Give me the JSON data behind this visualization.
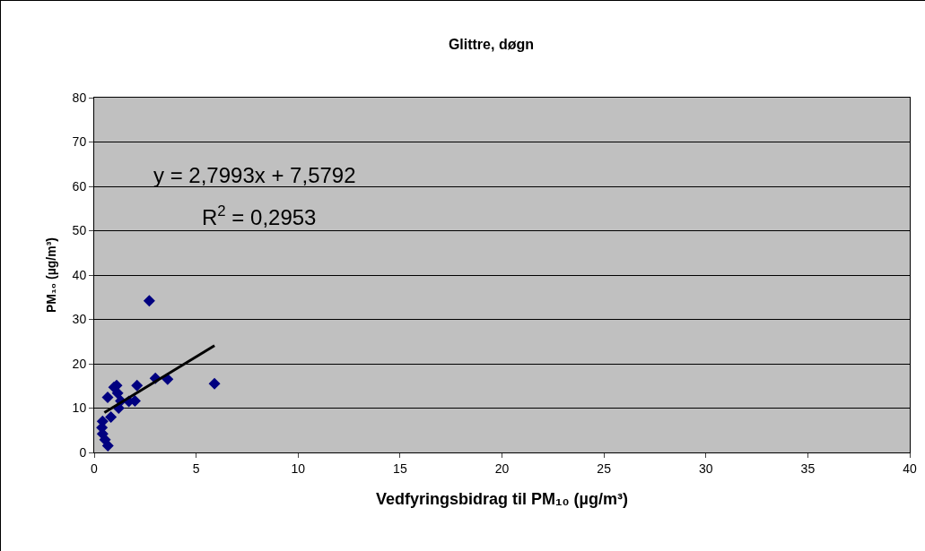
{
  "chart_data": {
    "type": "scatter",
    "title": "Glittre, døgn",
    "xlabel": "Vedfyringsbidrag til PM₁₀ (µg/m³)",
    "ylabel": "PM₁₀ (µg/m³)",
    "xlim": [
      0,
      40
    ],
    "xticks": [
      0,
      5,
      10,
      15,
      20,
      25,
      30,
      35,
      40
    ],
    "ylim": [
      0,
      80
    ],
    "yticks": [
      0,
      10,
      20,
      30,
      40,
      50,
      60,
      70,
      80
    ],
    "grid": "y",
    "marker": "diamond",
    "series": [
      {
        "color": "#000080",
        "x": [
          2.7,
          5.9,
          3.6,
          3.0,
          2.1,
          1.1,
          0.97,
          1.15,
          0.66,
          1.3,
          1.7,
          2.0,
          1.2,
          0.82,
          0.41,
          0.38,
          0.41,
          0.53,
          0.67
        ],
        "values": [
          34.2,
          15.5,
          16.5,
          16.7,
          15.1,
          15.1,
          14.7,
          13.4,
          12.4,
          11.6,
          11.5,
          11.6,
          10.0,
          8.0,
          7.0,
          5.6,
          4.2,
          2.9,
          1.5
        ]
      },
      {
        "type": "line",
        "color": "#000000",
        "marker": "none",
        "x": [
          0.5,
          5.9
        ],
        "values": [
          9.0,
          24.1
        ]
      }
    ],
    "annotations": [
      "y = 2,7993x + 7,5792",
      "R$^{2}$ = 0,2953"
    ]
  }
}
